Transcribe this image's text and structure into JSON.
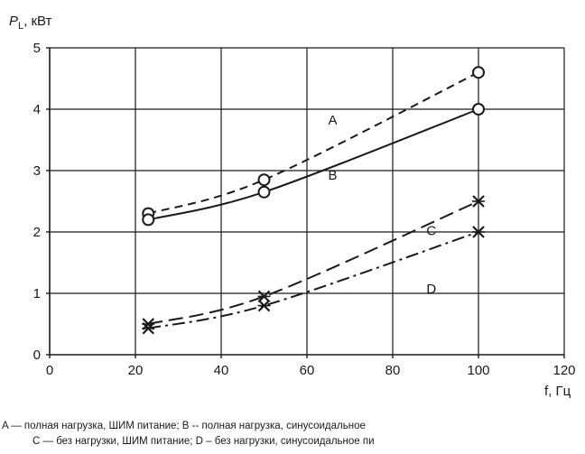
{
  "chart_data": {
    "type": "line",
    "ylabel_main": "P",
    "ylabel_sub": "L",
    "ylabel_unit": ", кВт",
    "xlabel": "f, Гц",
    "xlim": [
      0,
      120
    ],
    "ylim": [
      0,
      5
    ],
    "x_ticks": [
      0,
      20,
      40,
      60,
      80,
      100,
      120
    ],
    "y_ticks": [
      0,
      1,
      2,
      3,
      4,
      5
    ],
    "grid": true,
    "series": [
      {
        "name": "A",
        "marker": "circle",
        "style": "dashed",
        "x": [
          23,
          50,
          100
        ],
        "y": [
          2.3,
          2.85,
          4.6
        ]
      },
      {
        "name": "B",
        "marker": "circle",
        "style": "solid",
        "x": [
          23,
          50,
          100
        ],
        "y": [
          2.2,
          2.65,
          4.0
        ]
      },
      {
        "name": "C",
        "marker": "cross",
        "style": "long-dash",
        "x": [
          23,
          50,
          100
        ],
        "y": [
          0.5,
          0.95,
          2.5
        ]
      },
      {
        "name": "D",
        "marker": "cross",
        "style": "dash-dot",
        "x": [
          23,
          50,
          100
        ],
        "y": [
          0.43,
          0.8,
          2.0
        ]
      }
    ],
    "caption_lines": [
      "A — полная нагрузка, ШИМ питание; B -- полная нагрузка, синусоидальное",
      "C — без нагрузки, ШИМ питание; D – без нагрузки, синусоидальное пи"
    ]
  }
}
